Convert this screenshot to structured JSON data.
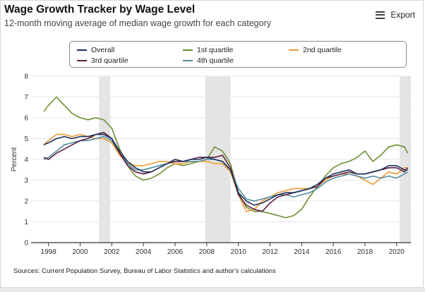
{
  "header": {
    "title": "Wage Growth Tracker by Wage Level",
    "subtitle": "12-month moving average of median wage growth for each category",
    "export_label": "Export"
  },
  "footer": {
    "sources": "Sources: Current Population Survey, Bureau of Labor Statistics and author's calculations"
  },
  "colors": {
    "overall": "#1b2f5a",
    "q1": "#6e8e34",
    "q2": "#ef9b34",
    "q3": "#5a1f3e",
    "q4": "#4f8da0",
    "recession": "#e4e4e4"
  },
  "chart_data": {
    "type": "line",
    "title": "Wage Growth Tracker by Wage Level",
    "subtitle": "12-month moving average of median wage growth for each category",
    "ylabel": "Percent",
    "xlabel": "",
    "ylim": [
      0,
      8
    ],
    "xlim": [
      1996.9,
      2020.9
    ],
    "x_ticks": [
      "1998",
      "2000",
      "2002",
      "2004",
      "2006",
      "2008",
      "2010",
      "2012",
      "2014",
      "2016",
      "2018",
      "2020"
    ],
    "y_ticks": [
      "0",
      "1",
      "2",
      "3",
      "4",
      "5",
      "6",
      "7",
      "8"
    ],
    "grid": "horizontal",
    "legend_position": "top",
    "recession_bands": [
      [
        2001.2,
        2001.9
      ],
      [
        2007.9,
        2009.5
      ],
      [
        2020.2,
        2020.9
      ]
    ],
    "x": [
      1997.7,
      1998,
      1998.5,
      1999,
      1999.5,
      2000,
      2000.5,
      2001,
      2001.5,
      2002,
      2002.5,
      2003,
      2003.5,
      2004,
      2004.5,
      2005,
      2005.5,
      2006,
      2006.5,
      2007,
      2007.5,
      2008,
      2008.5,
      2009,
      2009.5,
      2010,
      2010.5,
      2011,
      2011.5,
      2012,
      2012.5,
      2013,
      2013.5,
      2014,
      2014.5,
      2015,
      2015.5,
      2016,
      2016.5,
      2017,
      2017.5,
      2018,
      2018.5,
      2019,
      2019.5,
      2020,
      2020.5,
      2020.7
    ],
    "series": [
      {
        "name": "Overall",
        "color_key": "overall",
        "values": [
          4.7,
          4.8,
          5.0,
          5.1,
          5.0,
          5.1,
          5.1,
          5.2,
          5.2,
          5.0,
          4.4,
          3.9,
          3.6,
          3.4,
          3.4,
          3.6,
          3.8,
          4.0,
          3.9,
          4.0,
          4.0,
          4.1,
          4.0,
          3.9,
          3.5,
          2.4,
          2.0,
          1.8,
          1.9,
          2.1,
          2.3,
          2.4,
          2.4,
          2.5,
          2.6,
          2.8,
          3.1,
          3.3,
          3.4,
          3.5,
          3.3,
          3.3,
          3.4,
          3.5,
          3.7,
          3.7,
          3.5,
          3.5
        ]
      },
      {
        "name": "1st quartile",
        "color_key": "q1",
        "values": [
          6.3,
          6.6,
          7.0,
          6.6,
          6.2,
          6.0,
          5.9,
          6.0,
          5.9,
          5.5,
          4.5,
          3.7,
          3.2,
          3.0,
          3.1,
          3.3,
          3.6,
          3.8,
          3.7,
          3.8,
          3.9,
          4.0,
          4.6,
          4.4,
          3.8,
          2.4,
          1.7,
          1.5,
          1.5,
          1.4,
          1.3,
          1.2,
          1.3,
          1.6,
          2.2,
          2.7,
          3.2,
          3.6,
          3.8,
          3.9,
          4.1,
          4.4,
          3.9,
          4.2,
          4.6,
          4.7,
          4.6,
          4.3
        ]
      },
      {
        "name": "2nd quartile",
        "color_key": "q2",
        "values": [
          4.7,
          4.9,
          5.2,
          5.2,
          5.1,
          5.2,
          5.1,
          5.0,
          5.0,
          4.8,
          4.2,
          3.8,
          3.7,
          3.7,
          3.8,
          3.9,
          3.9,
          3.8,
          3.8,
          3.9,
          3.9,
          3.9,
          3.8,
          3.8,
          3.4,
          2.3,
          1.5,
          1.6,
          2.0,
          2.2,
          2.4,
          2.5,
          2.6,
          2.6,
          2.6,
          2.7,
          3.0,
          3.2,
          3.3,
          3.3,
          3.2,
          3.0,
          2.8,
          3.1,
          3.4,
          3.3,
          3.6,
          3.6
        ]
      },
      {
        "name": "3rd quartile",
        "color_key": "q3",
        "values": [
          4.1,
          4.0,
          4.3,
          4.5,
          4.7,
          4.9,
          5.0,
          5.2,
          5.3,
          5.0,
          4.3,
          3.7,
          3.4,
          3.3,
          3.4,
          3.6,
          3.8,
          3.9,
          3.9,
          4.0,
          4.1,
          4.1,
          4.1,
          4.2,
          3.6,
          2.3,
          1.8,
          1.6,
          1.5,
          1.9,
          2.2,
          2.3,
          2.4,
          2.5,
          2.6,
          2.7,
          3.1,
          3.2,
          3.3,
          3.4,
          3.3,
          3.3,
          3.4,
          3.5,
          3.6,
          3.6,
          3.4,
          3.6
        ]
      },
      {
        "name": "4th quartile",
        "color_key": "q4",
        "values": [
          4.0,
          4.1,
          4.4,
          4.7,
          4.8,
          4.9,
          4.9,
          5.0,
          5.1,
          4.9,
          4.3,
          3.8,
          3.5,
          3.5,
          3.6,
          3.7,
          3.8,
          3.9,
          3.9,
          3.9,
          3.9,
          4.0,
          4.0,
          3.9,
          3.5,
          2.6,
          2.1,
          2.0,
          2.1,
          2.2,
          2.3,
          2.3,
          2.2,
          2.3,
          2.4,
          2.6,
          2.9,
          3.1,
          3.2,
          3.3,
          3.2,
          3.1,
          3.2,
          3.1,
          3.2,
          3.1,
          3.3,
          3.4
        ]
      }
    ]
  }
}
